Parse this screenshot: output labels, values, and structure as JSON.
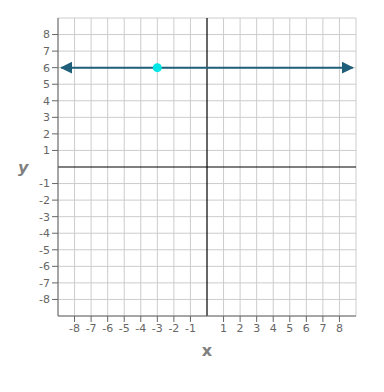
{
  "chart_data": {
    "type": "scatter",
    "xlabel": "x",
    "ylabel": "y",
    "xlim": [
      -9,
      9
    ],
    "ylim": [
      -9,
      9
    ],
    "xticks": [
      -8,
      -7,
      -6,
      -5,
      -4,
      -3,
      -2,
      -1,
      1,
      2,
      3,
      4,
      5,
      6,
      7,
      8
    ],
    "yticks": [
      -8,
      -7,
      -6,
      -5,
      -4,
      -3,
      -2,
      -1,
      1,
      2,
      3,
      4,
      5,
      6,
      7,
      8
    ],
    "grid": true,
    "series": [
      {
        "type": "line",
        "x": [
          -8.8,
          8.8
        ],
        "values": [
          6,
          6
        ],
        "color": "#1f5f7a",
        "marker": "arrow"
      },
      {
        "type": "scatter",
        "x": [
          -3
        ],
        "values": [
          6
        ],
        "color": "#00e5e5",
        "marker": "circle"
      }
    ]
  }
}
